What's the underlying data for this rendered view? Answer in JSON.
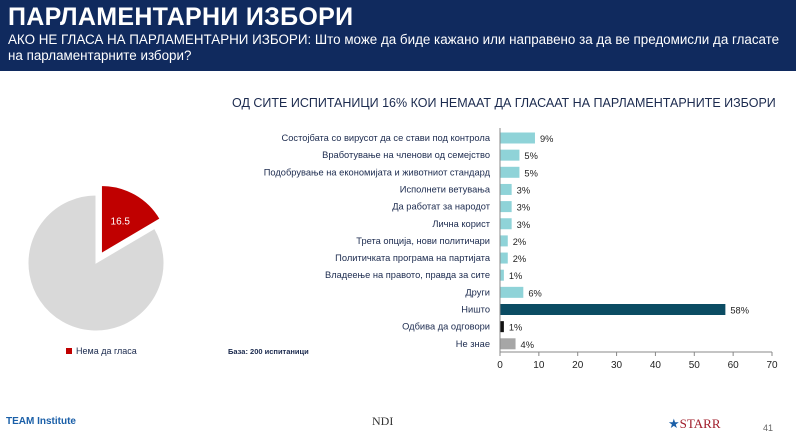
{
  "header": {
    "title": "ПАРЛАМЕНТАРНИ ИЗБОРИ",
    "subtitle": "АКО НЕ ГЛАСА НА ПАРЛАМЕНТАРНИ ИЗБОРИ: Што може да биде кажано или направено за да ве предомисли да гласате на парламентарните избори?"
  },
  "chart_data": [
    {
      "type": "pie",
      "values": [
        16.5,
        83.5
      ],
      "labels": [
        "Нема да гласа",
        ""
      ],
      "colors": [
        "#c00000",
        "#d9d9d9"
      ],
      "data_label": "16.5",
      "legend": [
        "Нема да гласа"
      ]
    },
    {
      "type": "bar",
      "orientation": "horizontal",
      "title": "ОД СИТЕ ИСПИТАНИЦИ 16% КОИ НЕМААТ ДА ГЛАСААТ НА ПАРЛАМЕНТАРНИТЕ ИЗБОРИ",
      "categories": [
        "Состојбата со вирусот да се стави под контрола",
        "Вработување на членови од семејство",
        "Подобрување на економијата и животниот стандард",
        "Исполнети ветувања",
        "Да работат за народот",
        "Лична корист",
        "Трета опција, нови политичари",
        "Политичката програма на партијата",
        "Владеење на правото, правда за сите",
        "Други",
        "Ништо",
        "Одбива да одговори",
        "Не знае"
      ],
      "values": [
        9,
        5,
        5,
        3,
        3,
        3,
        2,
        2,
        1,
        6,
        58,
        1,
        4
      ],
      "value_labels": [
        "9%",
        "5%",
        "5%",
        "3%",
        "3%",
        "3%",
        "2%",
        "2%",
        "1%",
        "6%",
        "58%",
        "1%",
        "4%"
      ],
      "colors": [
        "#8fd3d8",
        "#8fd3d8",
        "#8fd3d8",
        "#8fd3d8",
        "#8fd3d8",
        "#8fd3d8",
        "#8fd3d8",
        "#8fd3d8",
        "#8fd3d8",
        "#8fd3d8",
        "#0b4c63",
        "#111111",
        "#a6a6a6"
      ],
      "xlim": [
        0,
        70
      ],
      "xticks": [
        0,
        10,
        20,
        30,
        40,
        50,
        60,
        70
      ]
    }
  ],
  "base": "База: 200 испитаници",
  "footer": {
    "logo_left": "TEAM Institute",
    "logo_center": "NDI",
    "logo_right": "STARR",
    "page": "41"
  }
}
